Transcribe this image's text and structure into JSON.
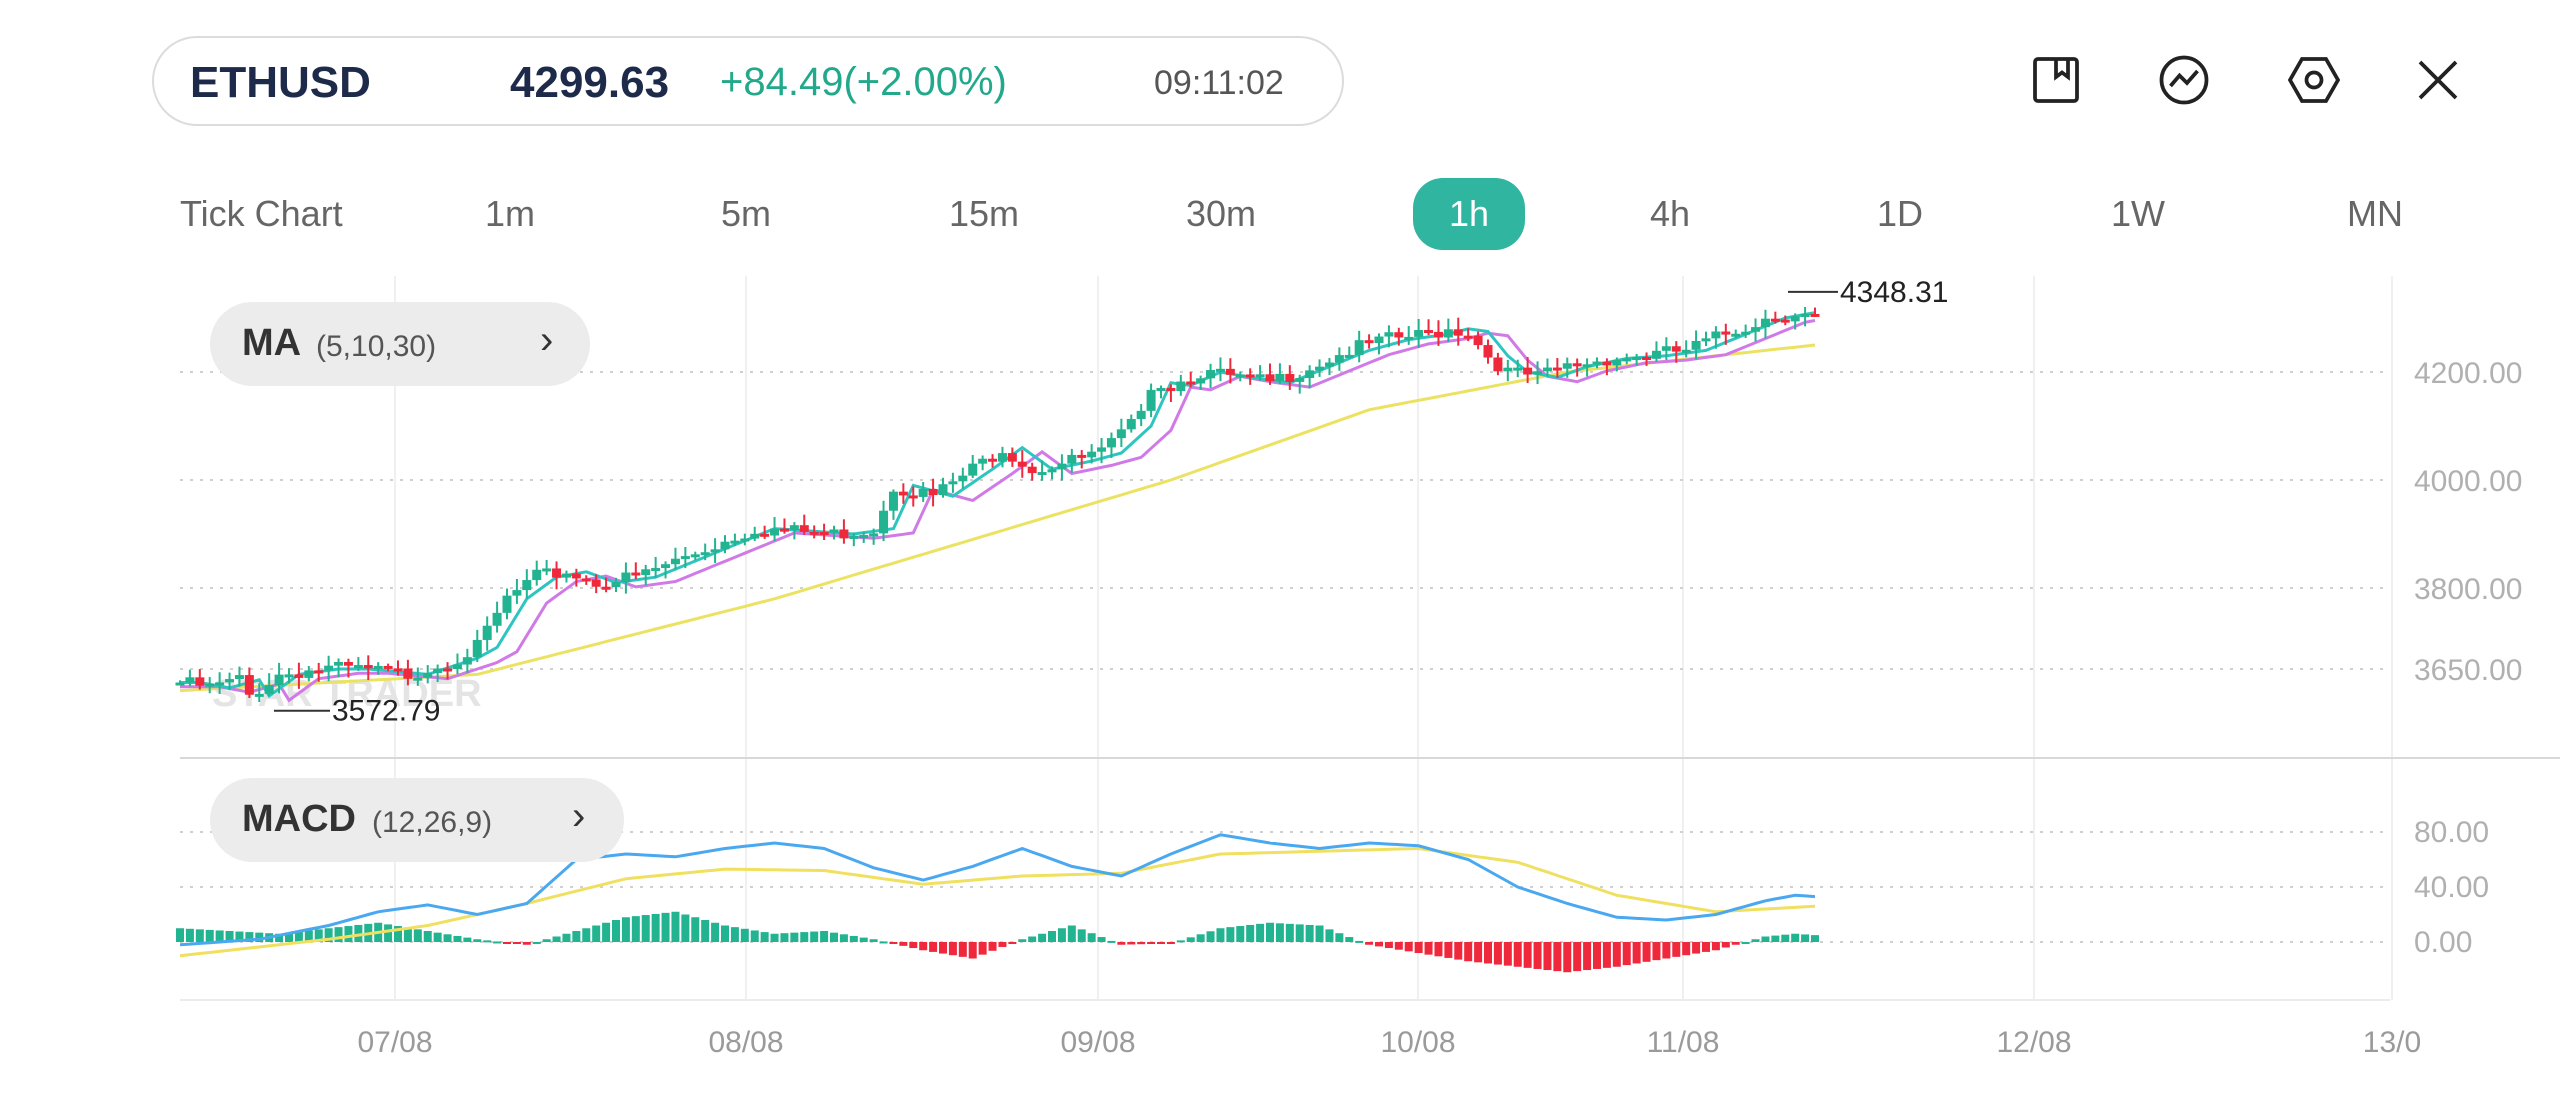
{
  "header": {
    "symbol": "ETHUSD",
    "price": "4299.63",
    "change": "+84.49(+2.00%)",
    "time": "09:11:02"
  },
  "toolbar": {
    "icons": [
      "bookmark-icon",
      "indicator-icon",
      "settings-icon",
      "close-icon"
    ]
  },
  "timeframes": [
    "Tick Chart",
    "1m",
    "5m",
    "15m",
    "30m",
    "1h",
    "4h",
    "1D",
    "1W",
    "MN"
  ],
  "active_timeframe": "1h",
  "ma_chip": {
    "name": "MA",
    "params": "(5,10,30)"
  },
  "macd_chip": {
    "name": "MACD",
    "params": "(12,26,9)"
  },
  "watermark": "STAR TRADER",
  "colors": {
    "accent": "#2fb5a0",
    "up": "#22b390",
    "down": "#f0283c",
    "ma5": "#2ec5c0",
    "ma10": "#d07ae8",
    "ma30": "#ece262",
    "macd": "#4aa8f0",
    "signal": "#f0e060"
  },
  "chart_data": {
    "type": "candlestick",
    "x_labels": [
      "07/08",
      "08/08",
      "09/08",
      "10/08",
      "11/08",
      "12/08",
      "13/0"
    ],
    "price_ticks": [
      "4200.00",
      "4000.00",
      "3800.00",
      "3650.00"
    ],
    "macd_ticks": [
      "80.00",
      "40.00",
      "0.00"
    ],
    "high_label": "4348.31",
    "low_label": "3572.79",
    "close_path": [
      [
        0,
        3625
      ],
      [
        3,
        3615
      ],
      [
        6,
        3630
      ],
      [
        7,
        3600
      ],
      [
        10,
        3640
      ],
      [
        14,
        3650
      ],
      [
        17,
        3650
      ],
      [
        23,
        3640
      ],
      [
        28,
        3670
      ],
      [
        30,
        3690
      ],
      [
        33,
        3780
      ],
      [
        36,
        3820
      ],
      [
        39,
        3830
      ],
      [
        42,
        3810
      ],
      [
        46,
        3820
      ],
      [
        50,
        3850
      ],
      [
        54,
        3880
      ],
      [
        58,
        3910
      ],
      [
        62,
        3905
      ],
      [
        66,
        3900
      ],
      [
        70,
        3910
      ],
      [
        72,
        3990
      ],
      [
        76,
        3970
      ],
      [
        80,
        4020
      ],
      [
        83,
        4060
      ],
      [
        86,
        4020
      ],
      [
        90,
        4035
      ],
      [
        93,
        4050
      ],
      [
        96,
        4100
      ],
      [
        98,
        4180
      ],
      [
        100,
        4175
      ],
      [
        103,
        4200
      ],
      [
        106,
        4190
      ],
      [
        110,
        4180
      ],
      [
        114,
        4210
      ],
      [
        118,
        4240
      ],
      [
        122,
        4260
      ],
      [
        126,
        4270
      ],
      [
        128,
        4280
      ],
      [
        130,
        4275
      ],
      [
        132,
        4230
      ],
      [
        134,
        4200
      ],
      [
        137,
        4190
      ],
      [
        140,
        4210
      ],
      [
        144,
        4225
      ],
      [
        148,
        4230
      ],
      [
        152,
        4240
      ],
      [
        156,
        4270
      ],
      [
        160,
        4300
      ],
      [
        163,
        4310
      ],
      [
        165,
        4300
      ]
    ],
    "ma30_path": [
      [
        0,
        3610
      ],
      [
        30,
        3640
      ],
      [
        60,
        3780
      ],
      [
        80,
        3890
      ],
      [
        100,
        4000
      ],
      [
        120,
        4130
      ],
      [
        140,
        4200
      ],
      [
        165,
        4250
      ]
    ],
    "macd_line": [
      [
        0,
        -2
      ],
      [
        8,
        2
      ],
      [
        15,
        12
      ],
      [
        20,
        22
      ],
      [
        25,
        27
      ],
      [
        30,
        20
      ],
      [
        35,
        28
      ],
      [
        40,
        60
      ],
      [
        45,
        64
      ],
      [
        50,
        62
      ],
      [
        55,
        68
      ],
      [
        60,
        72
      ],
      [
        65,
        68
      ],
      [
        70,
        54
      ],
      [
        75,
        45
      ],
      [
        80,
        55
      ],
      [
        85,
        68
      ],
      [
        90,
        55
      ],
      [
        95,
        48
      ],
      [
        100,
        64
      ],
      [
        105,
        78
      ],
      [
        110,
        72
      ],
      [
        115,
        68
      ],
      [
        120,
        72
      ],
      [
        125,
        70
      ],
      [
        130,
        60
      ],
      [
        135,
        40
      ],
      [
        140,
        28
      ],
      [
        145,
        18
      ],
      [
        150,
        16
      ],
      [
        155,
        20
      ],
      [
        160,
        30
      ],
      [
        163,
        34
      ],
      [
        165,
        33
      ]
    ],
    "signal_line": [
      [
        0,
        -10
      ],
      [
        15,
        2
      ],
      [
        25,
        12
      ],
      [
        35,
        28
      ],
      [
        45,
        46
      ],
      [
        55,
        53
      ],
      [
        65,
        52
      ],
      [
        75,
        42
      ],
      [
        85,
        48
      ],
      [
        95,
        50
      ],
      [
        105,
        64
      ],
      [
        115,
        66
      ],
      [
        125,
        68
      ],
      [
        135,
        58
      ],
      [
        145,
        34
      ],
      [
        155,
        22
      ],
      [
        165,
        26
      ]
    ],
    "histogram": [
      [
        0,
        10
      ],
      [
        10,
        6
      ],
      [
        20,
        14
      ],
      [
        30,
        2
      ],
      [
        35,
        -2
      ],
      [
        40,
        8
      ],
      [
        45,
        18
      ],
      [
        50,
        22
      ],
      [
        55,
        12
      ],
      [
        60,
        6
      ],
      [
        65,
        8
      ],
      [
        70,
        2
      ],
      [
        75,
        -6
      ],
      [
        80,
        -12
      ],
      [
        85,
        2
      ],
      [
        90,
        12
      ],
      [
        95,
        -2
      ],
      [
        100,
        -1
      ],
      [
        105,
        10
      ],
      [
        110,
        14
      ],
      [
        115,
        12
      ],
      [
        120,
        -2
      ],
      [
        125,
        -8
      ],
      [
        130,
        -14
      ],
      [
        135,
        -18
      ],
      [
        140,
        -22
      ],
      [
        145,
        -18
      ],
      [
        150,
        -12
      ],
      [
        155,
        -6
      ],
      [
        160,
        4
      ],
      [
        163,
        6
      ],
      [
        165,
        5
      ]
    ]
  }
}
